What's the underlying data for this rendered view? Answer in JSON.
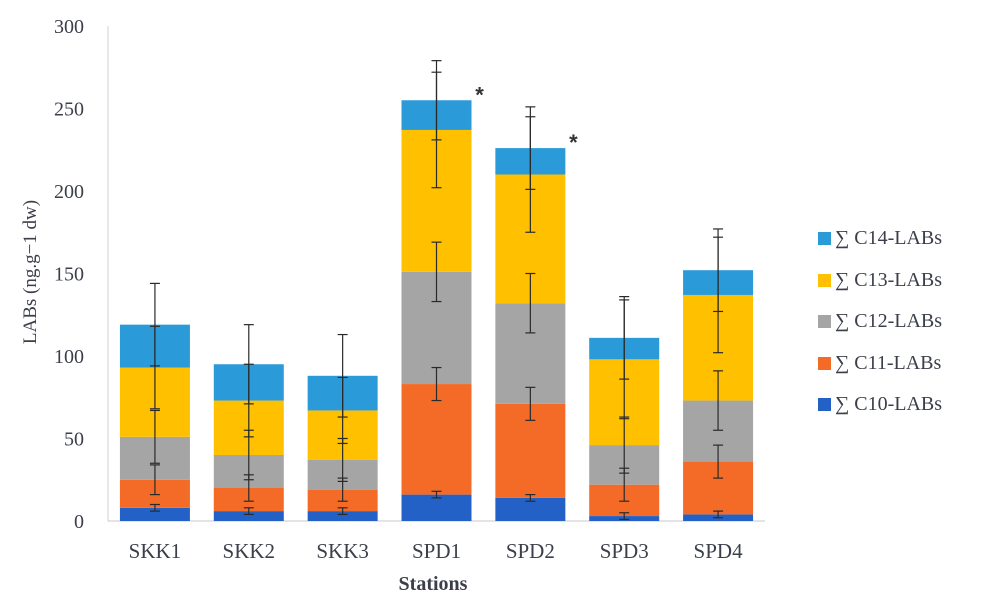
{
  "chart_data": {
    "type": "bar",
    "stacked": true,
    "xlabel": "Stations",
    "ylabel": "LABs (ng.g−1 dw)",
    "ylim": [
      0,
      300
    ],
    "yticks": [
      "0",
      "50",
      "100",
      "150",
      "200",
      "250",
      "300"
    ],
    "categories": [
      "SKK1",
      "SKK2",
      "SKK3",
      "SPD1",
      "SPD2",
      "SPD3",
      "SPD4"
    ],
    "series": [
      {
        "name": "∑ C10-LABs",
        "color": "#2461c6",
        "values": [
          8,
          6,
          6,
          16,
          14,
          3,
          4
        ],
        "errors": [
          2,
          2,
          2,
          2,
          2,
          2,
          2
        ]
      },
      {
        "name": "∑ C11-LABs",
        "color": "#f46b27",
        "values": [
          17,
          14,
          13,
          67,
          57,
          19,
          32
        ],
        "errors": [
          9,
          8,
          7,
          10,
          10,
          10,
          10
        ]
      },
      {
        "name": "∑ C12-LABs",
        "color": "#a5a5a5",
        "values": [
          26,
          20,
          18,
          68,
          61,
          24,
          37
        ],
        "errors": [
          16,
          15,
          13,
          18,
          18,
          17,
          18
        ]
      },
      {
        "name": "∑ C13-LABs",
        "color": "#ffc000",
        "values": [
          42,
          33,
          30,
          86,
          78,
          52,
          64
        ],
        "errors": [
          25,
          22,
          20,
          35,
          35,
          36,
          35
        ]
      },
      {
        "name": "∑ C14-LABs",
        "color": "#2b9ad8",
        "values": [
          26,
          22,
          21,
          18,
          16,
          13,
          15
        ],
        "errors": [
          25,
          24,
          25,
          24,
          25,
          25,
          25
        ]
      }
    ],
    "totals": [
      119,
      95,
      88,
      255,
      226,
      111,
      152
    ],
    "significance_markers": [
      {
        "category": "SPD1",
        "label": "*"
      },
      {
        "category": "SPD2",
        "label": "*"
      }
    ],
    "legend_position": "right",
    "grid": false
  }
}
